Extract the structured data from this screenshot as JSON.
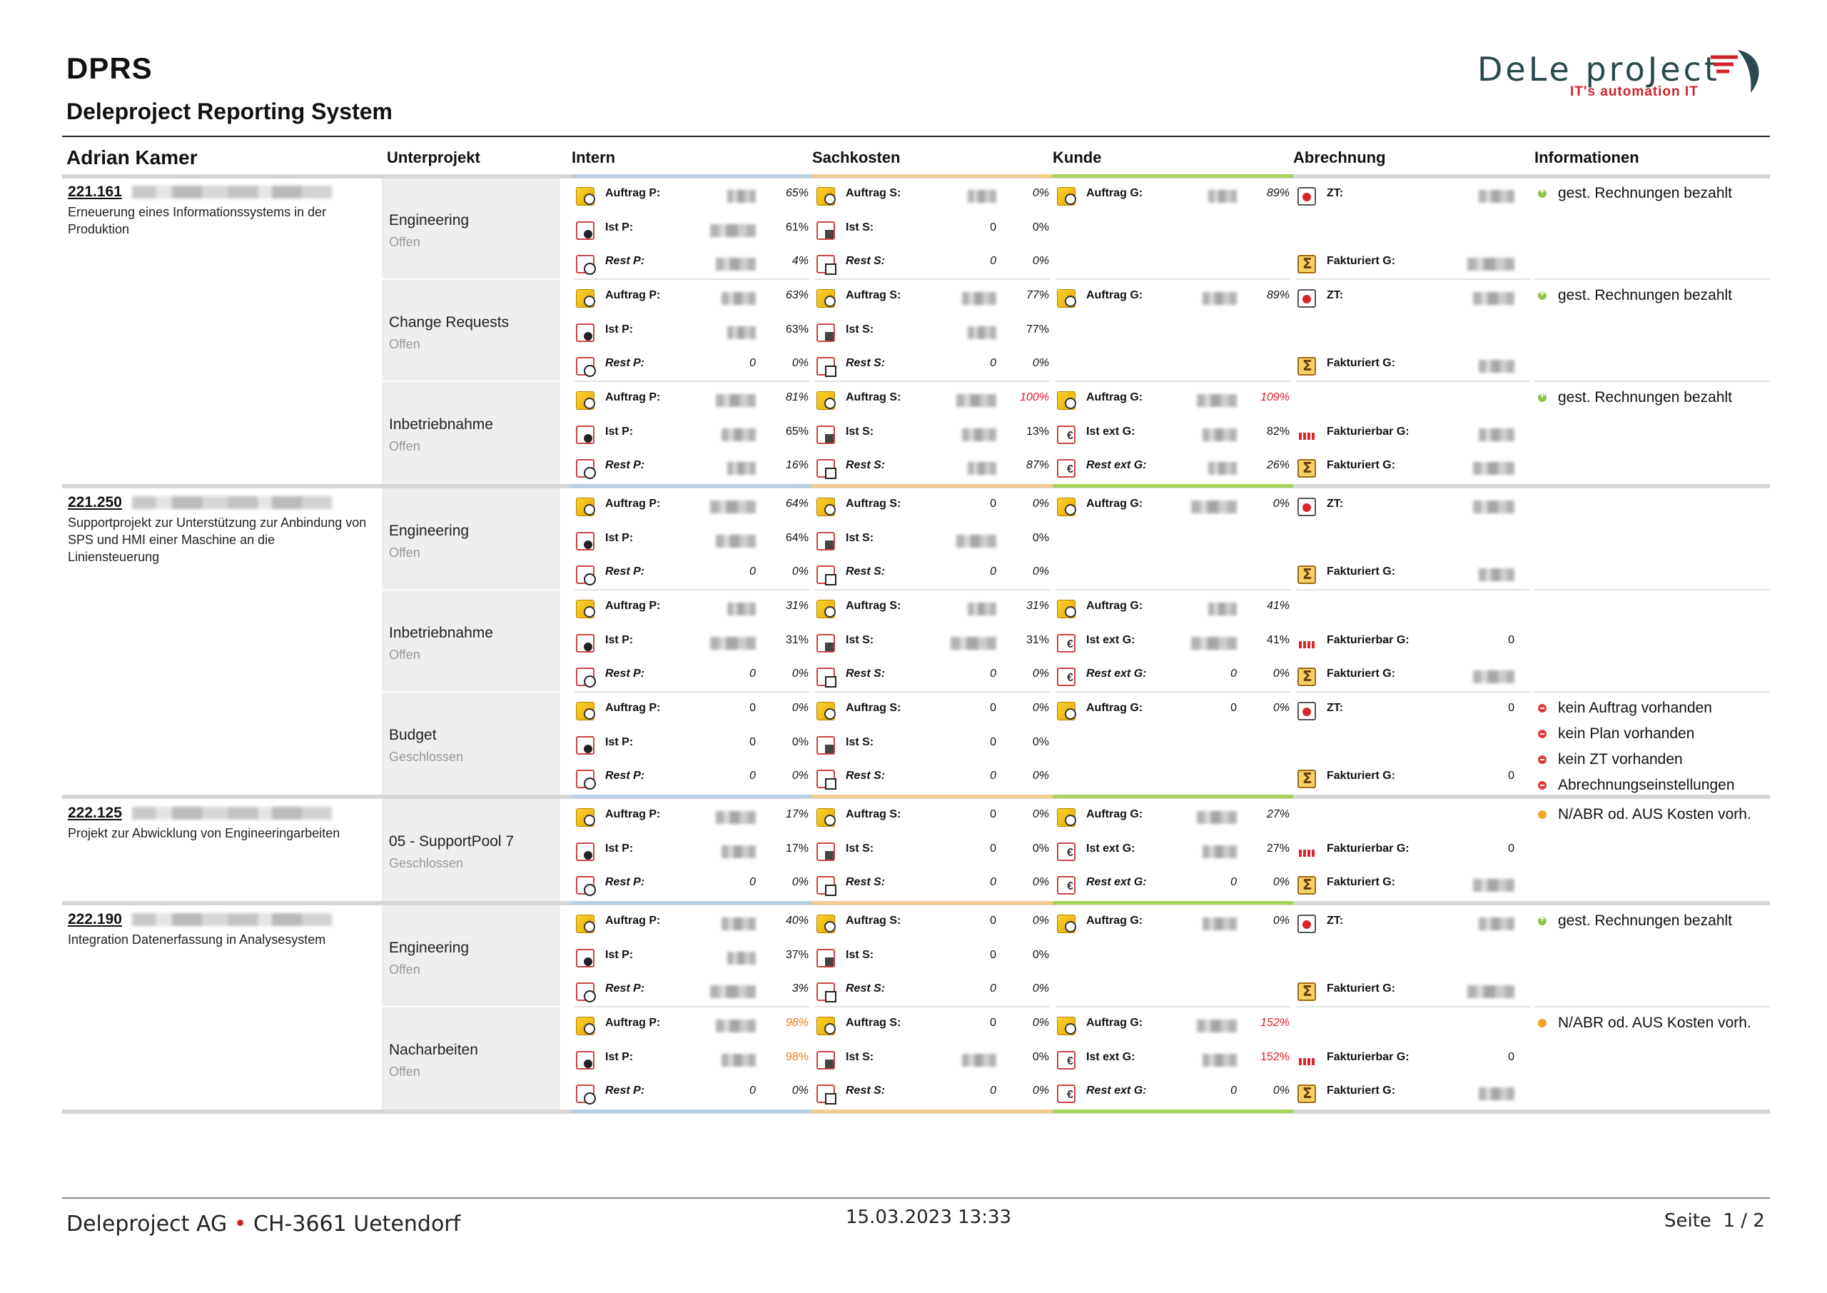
{
  "header": {
    "title": "DPRS",
    "subtitle": "Deleproject Reporting System",
    "logo_text": "DeLe proJect",
    "logo_tagline": "IT's automation IT"
  },
  "columns": {
    "person": "Adrian Kamer",
    "unterprojekt": "Unterprojekt",
    "intern": "Intern",
    "sachkosten": "Sachkosten",
    "kunde": "Kunde",
    "abrechnung": "Abrechnung",
    "informationen": "Informationen"
  },
  "colors": {
    "intern": "#b8cfe4",
    "sachkosten": "#f1cc8f",
    "kunde": "#a8d35a",
    "abrechnung": "#cccccc",
    "red": "#e0192a",
    "orange": "#f07a10"
  },
  "projects": [
    {
      "id": "221.161",
      "description": "Erneuerung eines Informationssystems in der Produktion",
      "subprojects": [
        {
          "name": "Engineering",
          "status": "Offen",
          "intern": [
            [
              "Auftrag P:",
              "",
              "65%"
            ],
            [
              "Ist P:",
              "",
              "61%"
            ],
            [
              "Rest P:",
              "",
              "4%"
            ]
          ],
          "sach": [
            [
              "Auftrag S:",
              "",
              "0%"
            ],
            [
              "Ist S:",
              "0",
              "0%"
            ],
            [
              "Rest S:",
              "0",
              "0%"
            ]
          ],
          "kunde": [
            [
              "Auftrag G:",
              "",
              "89%"
            ]
          ],
          "abr": [
            [
              "ZT:",
              ""
            ],
            [
              "",
              ""
            ],
            [
              "Fakturiert G:",
              ""
            ]
          ],
          "info": [
            [
              "green",
              "gest. Rechnungen bezahlt"
            ]
          ]
        },
        {
          "name": "Change Requests",
          "status": "Offen",
          "intern": [
            [
              "Auftrag P:",
              "",
              "63%"
            ],
            [
              "Ist P:",
              "",
              "63%"
            ],
            [
              "Rest P:",
              "0",
              "0%"
            ]
          ],
          "sach": [
            [
              "Auftrag S:",
              "",
              "77%"
            ],
            [
              "Ist S:",
              "",
              "77%"
            ],
            [
              "Rest S:",
              "0",
              "0%"
            ]
          ],
          "kunde": [
            [
              "Auftrag G:",
              "",
              "89%"
            ]
          ],
          "abr": [
            [
              "ZT:",
              ""
            ],
            [
              "",
              ""
            ],
            [
              "Fakturiert G:",
              ""
            ]
          ],
          "info": [
            [
              "green",
              "gest. Rechnungen bezahlt"
            ]
          ]
        },
        {
          "name": "Inbetriebnahme",
          "status": "Offen",
          "intern": [
            [
              "Auftrag P:",
              "",
              "81%"
            ],
            [
              "Ist P:",
              "",
              "65%"
            ],
            [
              "Rest P:",
              "",
              "16%"
            ]
          ],
          "sach": [
            [
              "Auftrag S:",
              "",
              "100%"
            ],
            [
              "Ist S:",
              "",
              "13%"
            ],
            [
              "Rest S:",
              "",
              "87%"
            ]
          ],
          "kunde": [
            [
              "Auftrag G:",
              "",
              "109%"
            ],
            [
              "Ist ext G:",
              "",
              "82%"
            ],
            [
              "Rest ext G:",
              "",
              "26%"
            ]
          ],
          "abr": [
            [
              "",
              ""
            ],
            [
              "Fakturierbar G:",
              ""
            ],
            [
              "Fakturiert G:",
              ""
            ]
          ],
          "info": [
            [
              "green",
              "gest. Rechnungen bezahlt"
            ]
          ]
        }
      ]
    },
    {
      "id": "221.250",
      "description": "Supportprojekt zur Unterstützung zur Anbindung von SPS und HMI einer Maschine an die Liniensteuerung",
      "subprojects": [
        {
          "name": "Engineering",
          "status": "Offen",
          "intern": [
            [
              "Auftrag P:",
              "",
              "64%"
            ],
            [
              "Ist P:",
              "",
              "64%"
            ],
            [
              "Rest P:",
              "0",
              "0%"
            ]
          ],
          "sach": [
            [
              "Auftrag S:",
              "0",
              "0%"
            ],
            [
              "Ist S:",
              "",
              "0%"
            ],
            [
              "Rest S:",
              "0",
              "0%"
            ]
          ],
          "kunde": [
            [
              "Auftrag G:",
              "",
              "0%"
            ]
          ],
          "abr": [
            [
              "ZT:",
              ""
            ],
            [
              "",
              ""
            ],
            [
              "Fakturiert G:",
              ""
            ]
          ],
          "info": []
        },
        {
          "name": "Inbetriebnahme",
          "status": "Offen",
          "intern": [
            [
              "Auftrag P:",
              "",
              "31%"
            ],
            [
              "Ist P:",
              "",
              "31%"
            ],
            [
              "Rest P:",
              "0",
              "0%"
            ]
          ],
          "sach": [
            [
              "Auftrag S:",
              "",
              "31%"
            ],
            [
              "Ist S:",
              "",
              "31%"
            ],
            [
              "Rest S:",
              "0",
              "0%"
            ]
          ],
          "kunde": [
            [
              "Auftrag G:",
              "",
              "41%"
            ],
            [
              "Ist ext G:",
              "",
              "41%"
            ],
            [
              "Rest ext G:",
              "0",
              "0%"
            ]
          ],
          "abr": [
            [
              "",
              ""
            ],
            [
              "Fakturierbar G:",
              "0"
            ],
            [
              "Fakturiert G:",
              ""
            ]
          ],
          "info": []
        },
        {
          "name": "Budget",
          "status": "Geschlossen",
          "intern": [
            [
              "Auftrag P:",
              "0",
              "0%"
            ],
            [
              "Ist P:",
              "0",
              "0%"
            ],
            [
              "Rest P:",
              "0",
              "0%"
            ]
          ],
          "sach": [
            [
              "Auftrag S:",
              "0",
              "0%"
            ],
            [
              "Ist S:",
              "0",
              "0%"
            ],
            [
              "Rest S:",
              "0",
              "0%"
            ]
          ],
          "kunde": [
            [
              "Auftrag G:",
              "0",
              "0%"
            ]
          ],
          "abr": [
            [
              "ZT:",
              "0"
            ],
            [
              "",
              ""
            ],
            [
              "Fakturiert G:",
              "0"
            ]
          ],
          "info": [
            [
              "red",
              "kein Auftrag vorhanden"
            ],
            [
              "red",
              "kein Plan vorhanden"
            ],
            [
              "red",
              "kein ZT vorhanden"
            ],
            [
              "red",
              "Abrechnungseinstellungen"
            ]
          ]
        }
      ]
    },
    {
      "id": "222.125",
      "description": "Projekt zur Abwicklung von Engineeringarbeiten",
      "subprojects": [
        {
          "name": "05 - SupportPool 7",
          "status": "Geschlossen",
          "intern": [
            [
              "Auftrag P:",
              "",
              "17%"
            ],
            [
              "Ist P:",
              "",
              "17%"
            ],
            [
              "Rest P:",
              "0",
              "0%"
            ]
          ],
          "sach": [
            [
              "Auftrag S:",
              "0",
              "0%"
            ],
            [
              "Ist S:",
              "0",
              "0%"
            ],
            [
              "Rest S:",
              "0",
              "0%"
            ]
          ],
          "kunde": [
            [
              "Auftrag G:",
              "",
              "27%"
            ],
            [
              "Ist ext G:",
              "",
              "27%"
            ],
            [
              "Rest ext G:",
              "0",
              "0%"
            ]
          ],
          "abr": [
            [
              "",
              ""
            ],
            [
              "Fakturierbar G:",
              "0"
            ],
            [
              "Fakturiert G:",
              ""
            ]
          ],
          "info": [
            [
              "orange",
              "N/ABR od. AUS Kosten vorh."
            ]
          ]
        }
      ]
    },
    {
      "id": "222.190",
      "description": "Integration Datenerfassung in Analysesystem",
      "subprojects": [
        {
          "name": "Engineering",
          "status": "Offen",
          "intern": [
            [
              "Auftrag P:",
              "",
              "40%"
            ],
            [
              "Ist P:",
              "",
              "37%"
            ],
            [
              "Rest P:",
              "",
              "3%"
            ]
          ],
          "sach": [
            [
              "Auftrag S:",
              "0",
              "0%"
            ],
            [
              "Ist S:",
              "0",
              "0%"
            ],
            [
              "Rest S:",
              "0",
              "0%"
            ]
          ],
          "kunde": [
            [
              "Auftrag G:",
              "",
              "0%"
            ]
          ],
          "abr": [
            [
              "ZT:",
              ""
            ],
            [
              "",
              ""
            ],
            [
              "Fakturiert G:",
              ""
            ]
          ],
          "info": [
            [
              "green",
              "gest. Rechnungen bezahlt"
            ]
          ]
        },
        {
          "name": "Nacharbeiten",
          "status": "Offen",
          "intern": [
            [
              "Auftrag P:",
              "",
              "98%"
            ],
            [
              "Ist P:",
              "",
              "98%"
            ],
            [
              "Rest P:",
              "0",
              "0%"
            ]
          ],
          "sach": [
            [
              "Auftrag S:",
              "0",
              "0%"
            ],
            [
              "Ist S:",
              "",
              "0%"
            ],
            [
              "Rest S:",
              "0",
              "0%"
            ]
          ],
          "kunde": [
            [
              "Auftrag G:",
              "",
              "152%"
            ],
            [
              "Ist ext G:",
              "",
              "152%"
            ],
            [
              "Rest ext G:",
              "0",
              "0%"
            ]
          ],
          "abr": [
            [
              "",
              ""
            ],
            [
              "Fakturierbar G:",
              "0"
            ],
            [
              "Fakturiert G:",
              ""
            ]
          ],
          "info": [
            [
              "orange",
              "N/ABR od. AUS Kosten vorh."
            ]
          ]
        }
      ]
    }
  ],
  "footer": {
    "company": "Deleproject AG",
    "bullet": "•",
    "location": "CH-3661 Uetendorf",
    "datetime": "15.03.2023 13:33",
    "page_label": "Seite",
    "page": "1 / 2"
  }
}
